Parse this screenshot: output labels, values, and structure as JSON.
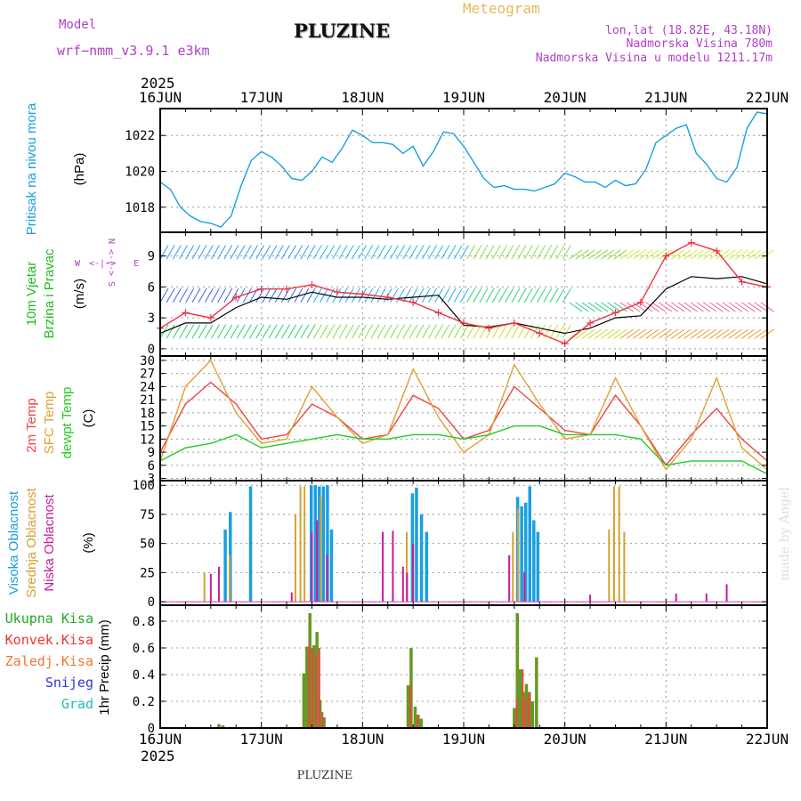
{
  "header": {
    "model_label": "Model",
    "model_name": "wrf−nmm_v3.9.1  e3km",
    "station": "PLUZINE",
    "product": "Meteogram",
    "coords": "lon,lat (18.82E, 43.18N)",
    "elevation": "Nadmorska Visina 780m",
    "model_elevation": "Nadmorska Visina u modelu 1211.17m",
    "watermark": "made by Angel",
    "footer_station": "PLUZINE"
  },
  "colors": {
    "pressure": "#1a9fe0",
    "temp2m": "#ee4444",
    "sfc_temp": "#e0a030",
    "dewpoint": "#22cc22",
    "cloud_high": "#1a9fe0",
    "cloud_mid": "#d8a030",
    "cloud_low": "#cc1a99",
    "precip_total": "#669922",
    "precip_conv": "#ee4444",
    "wind_speed_line": "#000000",
    "wind_gust": "#ee3344",
    "grid": "#999999"
  },
  "chart_data": {
    "type": "line",
    "title": "PLUZINE Meteogram",
    "time_axis": {
      "year": "2025",
      "ticks": [
        "16JUN",
        "17JUN",
        "18JUN",
        "19JUN",
        "20JUN",
        "21JUN",
        "22JUN"
      ],
      "range_days": [
        0,
        6
      ]
    },
    "panels": [
      {
        "id": "pressure",
        "type": "line",
        "ylabel_lines": [
          "Pritisak na nivou mora",
          "(hPa)"
        ],
        "yticks": [
          1018,
          1020,
          1022
        ],
        "ylim": [
          1016.6,
          1023.5
        ],
        "series": [
          {
            "name": "MSLP",
            "x_days": [
              0,
              0.1,
              0.2,
              0.3,
              0.4,
              0.5,
              0.6,
              0.7,
              0.8,
              0.9,
              1.0,
              1.1,
              1.2,
              1.3,
              1.4,
              1.5,
              1.6,
              1.7,
              1.8,
              1.9,
              2.0,
              2.1,
              2.2,
              2.3,
              2.4,
              2.5,
              2.6,
              2.7,
              2.8,
              2.9,
              3.0,
              3.1,
              3.2,
              3.3,
              3.4,
              3.5,
              3.6,
              3.7,
              3.8,
              3.9,
              4.0,
              4.1,
              4.2,
              4.3,
              4.4,
              4.5,
              4.6,
              4.7,
              4.8,
              4.9,
              5.0,
              5.1,
              5.2,
              5.3,
              5.4,
              5.5,
              5.6,
              5.7,
              5.8,
              5.9,
              6.0
            ],
            "values": [
              1019.4,
              1019.0,
              1018.0,
              1017.5,
              1017.2,
              1017.1,
              1016.9,
              1017.5,
              1019.2,
              1020.6,
              1021.1,
              1020.8,
              1020.3,
              1019.6,
              1019.5,
              1020.0,
              1020.8,
              1020.5,
              1021.3,
              1022.3,
              1022.0,
              1021.6,
              1021.6,
              1021.5,
              1021.0,
              1021.4,
              1020.3,
              1021.1,
              1022.2,
              1022.1,
              1021.4,
              1020.5,
              1019.6,
              1019.1,
              1019.2,
              1019.0,
              1019.0,
              1018.9,
              1019.1,
              1019.3,
              1019.9,
              1019.7,
              1019.4,
              1019.4,
              1019.1,
              1019.5,
              1019.2,
              1019.3,
              1020.1,
              1021.6,
              1022.0,
              1022.4,
              1022.6,
              1021.0,
              1020.4,
              1019.6,
              1019.4,
              1020.2,
              1022.4,
              1023.3,
              1023.2
            ]
          }
        ]
      },
      {
        "id": "wind",
        "type": "line",
        "ylabel_lines": [
          "10m Vjetar",
          "Brzina i Pravac",
          "(m/s)"
        ],
        "compass": [
          "N",
          "W",
          "E",
          "S"
        ],
        "yticks": [
          0,
          3,
          6,
          9
        ],
        "ylim": [
          -0.7,
          11.3
        ],
        "barb_rows_ms": [
          1,
          4.5,
          8.7
        ],
        "series": [
          {
            "name": "10m wind speed",
            "x_days": [
              0,
              0.25,
              0.5,
              0.75,
              1.0,
              1.25,
              1.5,
              1.75,
              2.0,
              2.25,
              2.5,
              2.75,
              3.0,
              3.25,
              3.5,
              3.75,
              4.0,
              4.25,
              4.5,
              4.75,
              5.0,
              5.25,
              5.5,
              5.75,
              6.0
            ],
            "values": [
              1.5,
              2.5,
              2.5,
              4.0,
              5.0,
              4.8,
              5.5,
              5.0,
              5.0,
              4.8,
              5.0,
              5.2,
              2.3,
              2.1,
              2.5,
              2.0,
              1.5,
              2.0,
              3.0,
              3.2,
              5.8,
              7.0,
              6.8,
              7.0,
              6.3
            ]
          },
          {
            "name": "10m wind gust",
            "x_days": [
              0,
              0.25,
              0.5,
              0.75,
              1.0,
              1.25,
              1.5,
              1.75,
              2.0,
              2.25,
              2.5,
              2.75,
              3.0,
              3.25,
              3.5,
              3.75,
              4.0,
              4.25,
              4.5,
              4.75,
              5.0,
              5.25,
              5.5,
              5.75,
              6.0
            ],
            "values": [
              2.0,
              3.5,
              3.0,
              5.0,
              5.8,
              5.8,
              6.2,
              5.5,
              5.3,
              5.0,
              4.5,
              3.5,
              2.5,
              2.0,
              2.5,
              1.5,
              0.5,
              2.5,
              3.5,
              4.5,
              9.0,
              10.3,
              9.5,
              6.5,
              6.0
            ]
          }
        ]
      },
      {
        "id": "temperature",
        "type": "line",
        "ylabel_lines": [
          "2m Temp",
          "SFC Temp",
          "dewpt Temp",
          "(C)"
        ],
        "yticks": [
          3,
          6,
          9,
          12,
          15,
          18,
          21,
          24,
          27,
          30
        ],
        "ylim": [
          2.5,
          31
        ],
        "series": [
          {
            "name": "2m Temp",
            "x_days": [
              0,
              0.25,
              0.5,
              0.75,
              1.0,
              1.25,
              1.5,
              1.75,
              2.0,
              2.25,
              2.5,
              2.75,
              3.0,
              3.25,
              3.5,
              3.75,
              4.0,
              4.25,
              4.5,
              4.75,
              5.0,
              5.25,
              5.5,
              5.75,
              6.0
            ],
            "values": [
              9,
              20,
              25,
              20,
              12,
              13,
              20,
              17,
              12,
              13,
              22,
              19,
              12,
              14,
              24,
              19,
              14,
              13,
              22,
              15,
              6,
              13,
              19,
              12,
              7
            ]
          },
          {
            "name": "SFC Temp",
            "x_days": [
              0,
              0.25,
              0.5,
              0.75,
              1.0,
              1.25,
              1.5,
              1.75,
              2.0,
              2.25,
              2.5,
              2.75,
              3.0,
              3.25,
              3.5,
              3.75,
              4.0,
              4.25,
              4.5,
              4.75,
              5.0,
              5.25,
              5.5,
              5.75,
              6.0
            ],
            "values": [
              7,
              24,
              30,
              18,
              11,
              12,
              24,
              17,
              11,
              13,
              28,
              17,
              9,
              13,
              29,
              20,
              12,
              13,
              26,
              15,
              5,
              12,
              26,
              10,
              5
            ]
          },
          {
            "name": "Dewpoint",
            "x_days": [
              0,
              0.25,
              0.5,
              0.75,
              1.0,
              1.25,
              1.5,
              1.75,
              2.0,
              2.25,
              2.5,
              2.75,
              3.0,
              3.25,
              3.5,
              3.75,
              4.0,
              4.25,
              4.5,
              4.75,
              5.0,
              5.25,
              5.5,
              5.75,
              6.0
            ],
            "values": [
              7,
              10,
              11,
              13,
              10,
              11,
              12,
              13,
              12,
              12,
              13,
              13,
              12,
              13,
              15,
              15,
              13,
              13,
              13,
              12,
              6,
              7,
              7,
              7,
              4
            ]
          }
        ]
      },
      {
        "id": "clouds",
        "type": "bar",
        "ylabel_lines": [
          "Visoka Oblacnost",
          "Srednja Oblacnost",
          "Niska Oblacnost",
          "(%)"
        ],
        "yticks": [
          0,
          25,
          50,
          75,
          100
        ],
        "ylim": [
          -3,
          104
        ],
        "series": [
          {
            "name": "Visoka Oblacnost",
            "x_days": [
              0.63,
              0.68,
              0.88,
              1.48,
              1.52,
              1.56,
              1.6,
              1.64,
              1.68,
              2.48,
              2.52,
              2.57,
              2.62,
              3.52,
              3.56,
              3.6,
              3.64,
              3.68,
              3.72
            ],
            "values": [
              62,
              77,
              99,
              100,
              100,
              99,
              99,
              100,
              62,
              93,
              98,
              75,
              60,
              90,
              82,
              85,
              99,
              70,
              60
            ]
          },
          {
            "name": "Srednja Oblacnost",
            "x_days": [
              0.45,
              0.7,
              1.35,
              1.4,
              1.44,
              1.6,
              2.45,
              3.5,
              3.55,
              4.45,
              4.5,
              4.55,
              4.6
            ],
            "values": [
              25,
              40,
              75,
              99,
              99,
              90,
              60,
              60,
              80,
              62,
              99,
              99,
              60
            ]
          },
          {
            "name": "Niska Oblacnost",
            "x_days": [
              0.5,
              0.58,
              1.3,
              1.5,
              1.55,
              1.65,
              2.2,
              2.3,
              2.4,
              2.44,
              2.5,
              3.45,
              3.6,
              4.25,
              5.1,
              5.4,
              5.6
            ],
            "values": [
              24,
              30,
              8,
              60,
              70,
              40,
              60,
              61,
              30,
              25,
              50,
              40,
              25,
              6,
              7,
              7,
              15
            ]
          }
        ]
      },
      {
        "id": "precip",
        "type": "bar",
        "ylabel_lines": [
          "1hr Precip (mm)"
        ],
        "legend": [
          "Ukupna Kisa",
          "Konvek.Kisa",
          "Zaledj.Kisa",
          "Snijeg",
          "Grad"
        ],
        "yticks": [
          0,
          0.2,
          0.4,
          0.6,
          0.8
        ],
        "ylim": [
          0,
          0.92
        ],
        "series": [
          {
            "name": "Ukupna Kisa",
            "x_days": [
              0.58,
              0.62,
              1.42,
              1.45,
              1.48,
              1.52,
              1.55,
              1.58,
              1.62,
              2.45,
              2.48,
              2.52,
              2.55,
              2.58,
              3.5,
              3.53,
              3.56,
              3.59,
              3.62,
              3.65,
              3.68,
              3.72
            ],
            "values": [
              0.03,
              0.02,
              0.41,
              0.61,
              0.86,
              0.62,
              0.72,
              0.21,
              0.08,
              0.32,
              0.6,
              0.16,
              0.1,
              0.07,
              0.15,
              0.86,
              0.44,
              0.27,
              0.33,
              0.27,
              0.2,
              0.53
            ]
          },
          {
            "name": "Konvek.Kisa",
            "x_days": [
              0.6,
              1.46,
              1.49,
              1.53,
              1.56,
              1.59,
              2.46,
              2.53,
              3.51,
              3.57,
              3.6,
              3.63
            ],
            "values": [
              0.02,
              0.63,
              0.6,
              0.55,
              0.6,
              0.12,
              0.32,
              0.1,
              0.22,
              0.44,
              0.22,
              0.27
            ]
          }
        ]
      }
    ],
    "precip_legend_colors": [
      "#22aa22",
      "#ee3333",
      "#ee7733",
      "#3333dd",
      "#22bbbb"
    ]
  }
}
